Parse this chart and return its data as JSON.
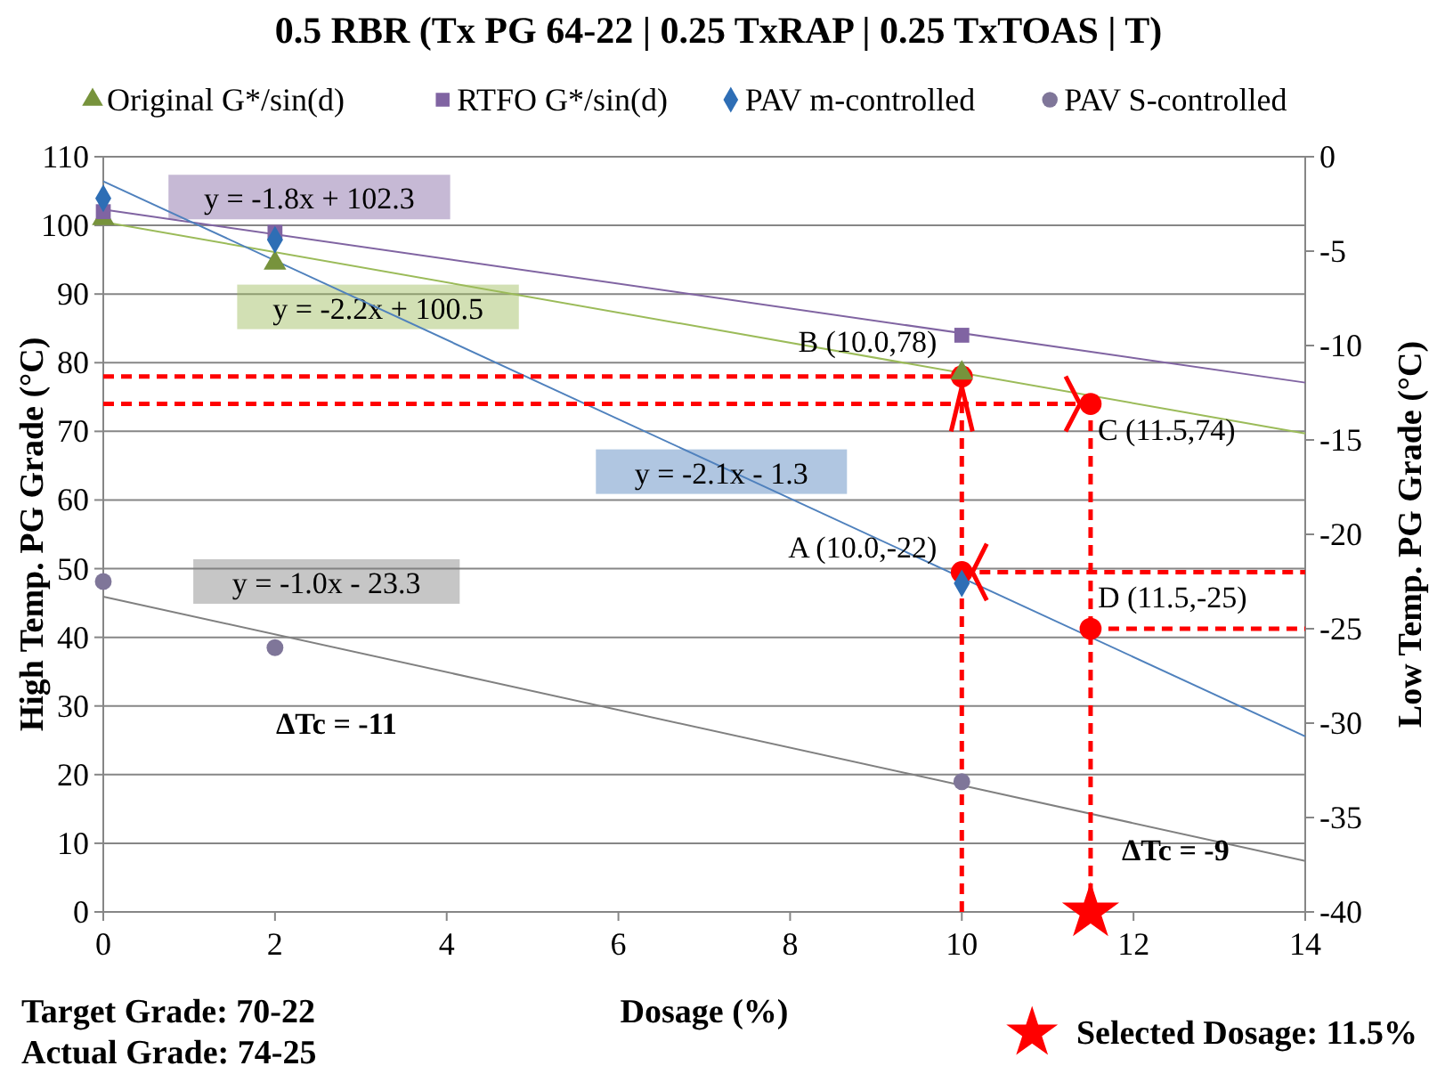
{
  "chart_data": {
    "type": "scatter",
    "title": "0.5 RBR (Tx PG 64-22 | 0.25 TxRAP | 0.25 TxTOAS | T)",
    "xlabel": "Dosage (%)",
    "ylabel": "High Temp. PG Grade (°C)",
    "y2label": "Low Temp. PG Grade (°C)",
    "xlim": [
      0,
      14
    ],
    "xticks": [
      0,
      2,
      4,
      6,
      8,
      10,
      12,
      14
    ],
    "ylim": [
      0,
      110
    ],
    "yticks": [
      0,
      10,
      20,
      30,
      40,
      50,
      60,
      70,
      80,
      90,
      100,
      110
    ],
    "y2lim": [
      -40,
      0
    ],
    "y2ticks": [
      -40,
      -35,
      -30,
      -25,
      -20,
      -15,
      -10,
      -5,
      0
    ],
    "grid": "y",
    "legend": "top",
    "annotations": [
      "ΔTc = -11",
      "ΔTc = -9",
      "Target Grade: 70-22",
      "Actual Grade: 74-25",
      "Selected Dosage: 11.5%"
    ],
    "series": [
      {
        "name": "Original G*/sin(d)",
        "marker": "triangle",
        "color": "#77933c",
        "x": [
          0,
          2,
          10
        ],
        "values": [
          101,
          94.5,
          78.5
        ]
      },
      {
        "name": "RTFO G*/sin(d)",
        "marker": "square",
        "color": "#8064a2",
        "x": [
          0,
          2,
          10
        ],
        "values": [
          102,
          99,
          84
        ]
      },
      {
        "name": "PAV m-controlled",
        "marker": "diamond",
        "color": "#2e6eb5",
        "axis": "y2",
        "x": [
          0,
          2,
          10
        ],
        "values": [
          -2.2,
          -4.4,
          -22.6
        ]
      },
      {
        "name": "PAV S-controlled",
        "marker": "circle",
        "color": "#7f7699",
        "axis": "y2",
        "x": [
          0,
          2,
          10
        ],
        "values": [
          -22.5,
          -26,
          -33.1
        ]
      },
      {
        "name": "y = -2.2x + 100.5",
        "type": "line",
        "color": "#9bbb59",
        "x": [
          0,
          14
        ],
        "values": [
          100.5,
          69.7
        ]
      },
      {
        "name": "y = -1.8x + 102.3",
        "type": "line",
        "color": "#8064a2",
        "x": [
          0,
          14
        ],
        "values": [
          102.3,
          77.1
        ]
      },
      {
        "name": "y = -2.1x - 1.3",
        "type": "line",
        "color": "#4f81bd",
        "axis": "y2",
        "x": [
          0,
          14
        ],
        "values": [
          -1.3,
          -30.7
        ]
      },
      {
        "name": "y = -1.0x - 23.3",
        "type": "line",
        "color": "#808080",
        "axis": "y2",
        "x": [
          0,
          14
        ],
        "values": [
          -23.3,
          -37.3
        ]
      },
      {
        "type": "line",
        "line_style": "dashed",
        "color": "#ff0000",
        "x": [
          0,
          10
        ],
        "values": [
          78,
          78
        ]
      },
      {
        "type": "line",
        "line_style": "dashed",
        "color": "#ff0000",
        "x": [
          0,
          11.5
        ],
        "values": [
          74,
          74
        ]
      },
      {
        "type": "line",
        "line_style": "dashed",
        "color": "#ff0000",
        "x": [
          10,
          10
        ],
        "values": [
          0,
          78
        ]
      },
      {
        "type": "line",
        "line_style": "dashed",
        "color": "#ff0000",
        "x": [
          11.5,
          11.5
        ],
        "values": [
          0,
          74
        ]
      },
      {
        "type": "line",
        "line_style": "dashed",
        "color": "#ff0000",
        "axis": "y2",
        "x": [
          10,
          14
        ],
        "values": [
          -22,
          -22
        ]
      },
      {
        "type": "line",
        "line_style": "dashed",
        "color": "#ff0000",
        "axis": "y2",
        "x": [
          11.5,
          14
        ],
        "values": [
          -25,
          -25
        ]
      },
      {
        "marker": "circle",
        "color": "#ff0000",
        "x": [
          10,
          11.5
        ],
        "values": [
          78,
          74
        ],
        "value_labels": [
          "B (10.0,78)",
          "C (11.5,74)"
        ]
      },
      {
        "marker": "circle",
        "color": "#ff0000",
        "axis": "y2",
        "x": [
          10,
          11.5
        ],
        "values": [
          -22,
          -25
        ],
        "value_labels": [
          "A (10.0,-22)",
          "D (11.5,-25)"
        ]
      },
      {
        "marker": "star",
        "color": "#ff0000",
        "x": [
          11.5
        ],
        "values": [
          0
        ]
      }
    ]
  }
}
